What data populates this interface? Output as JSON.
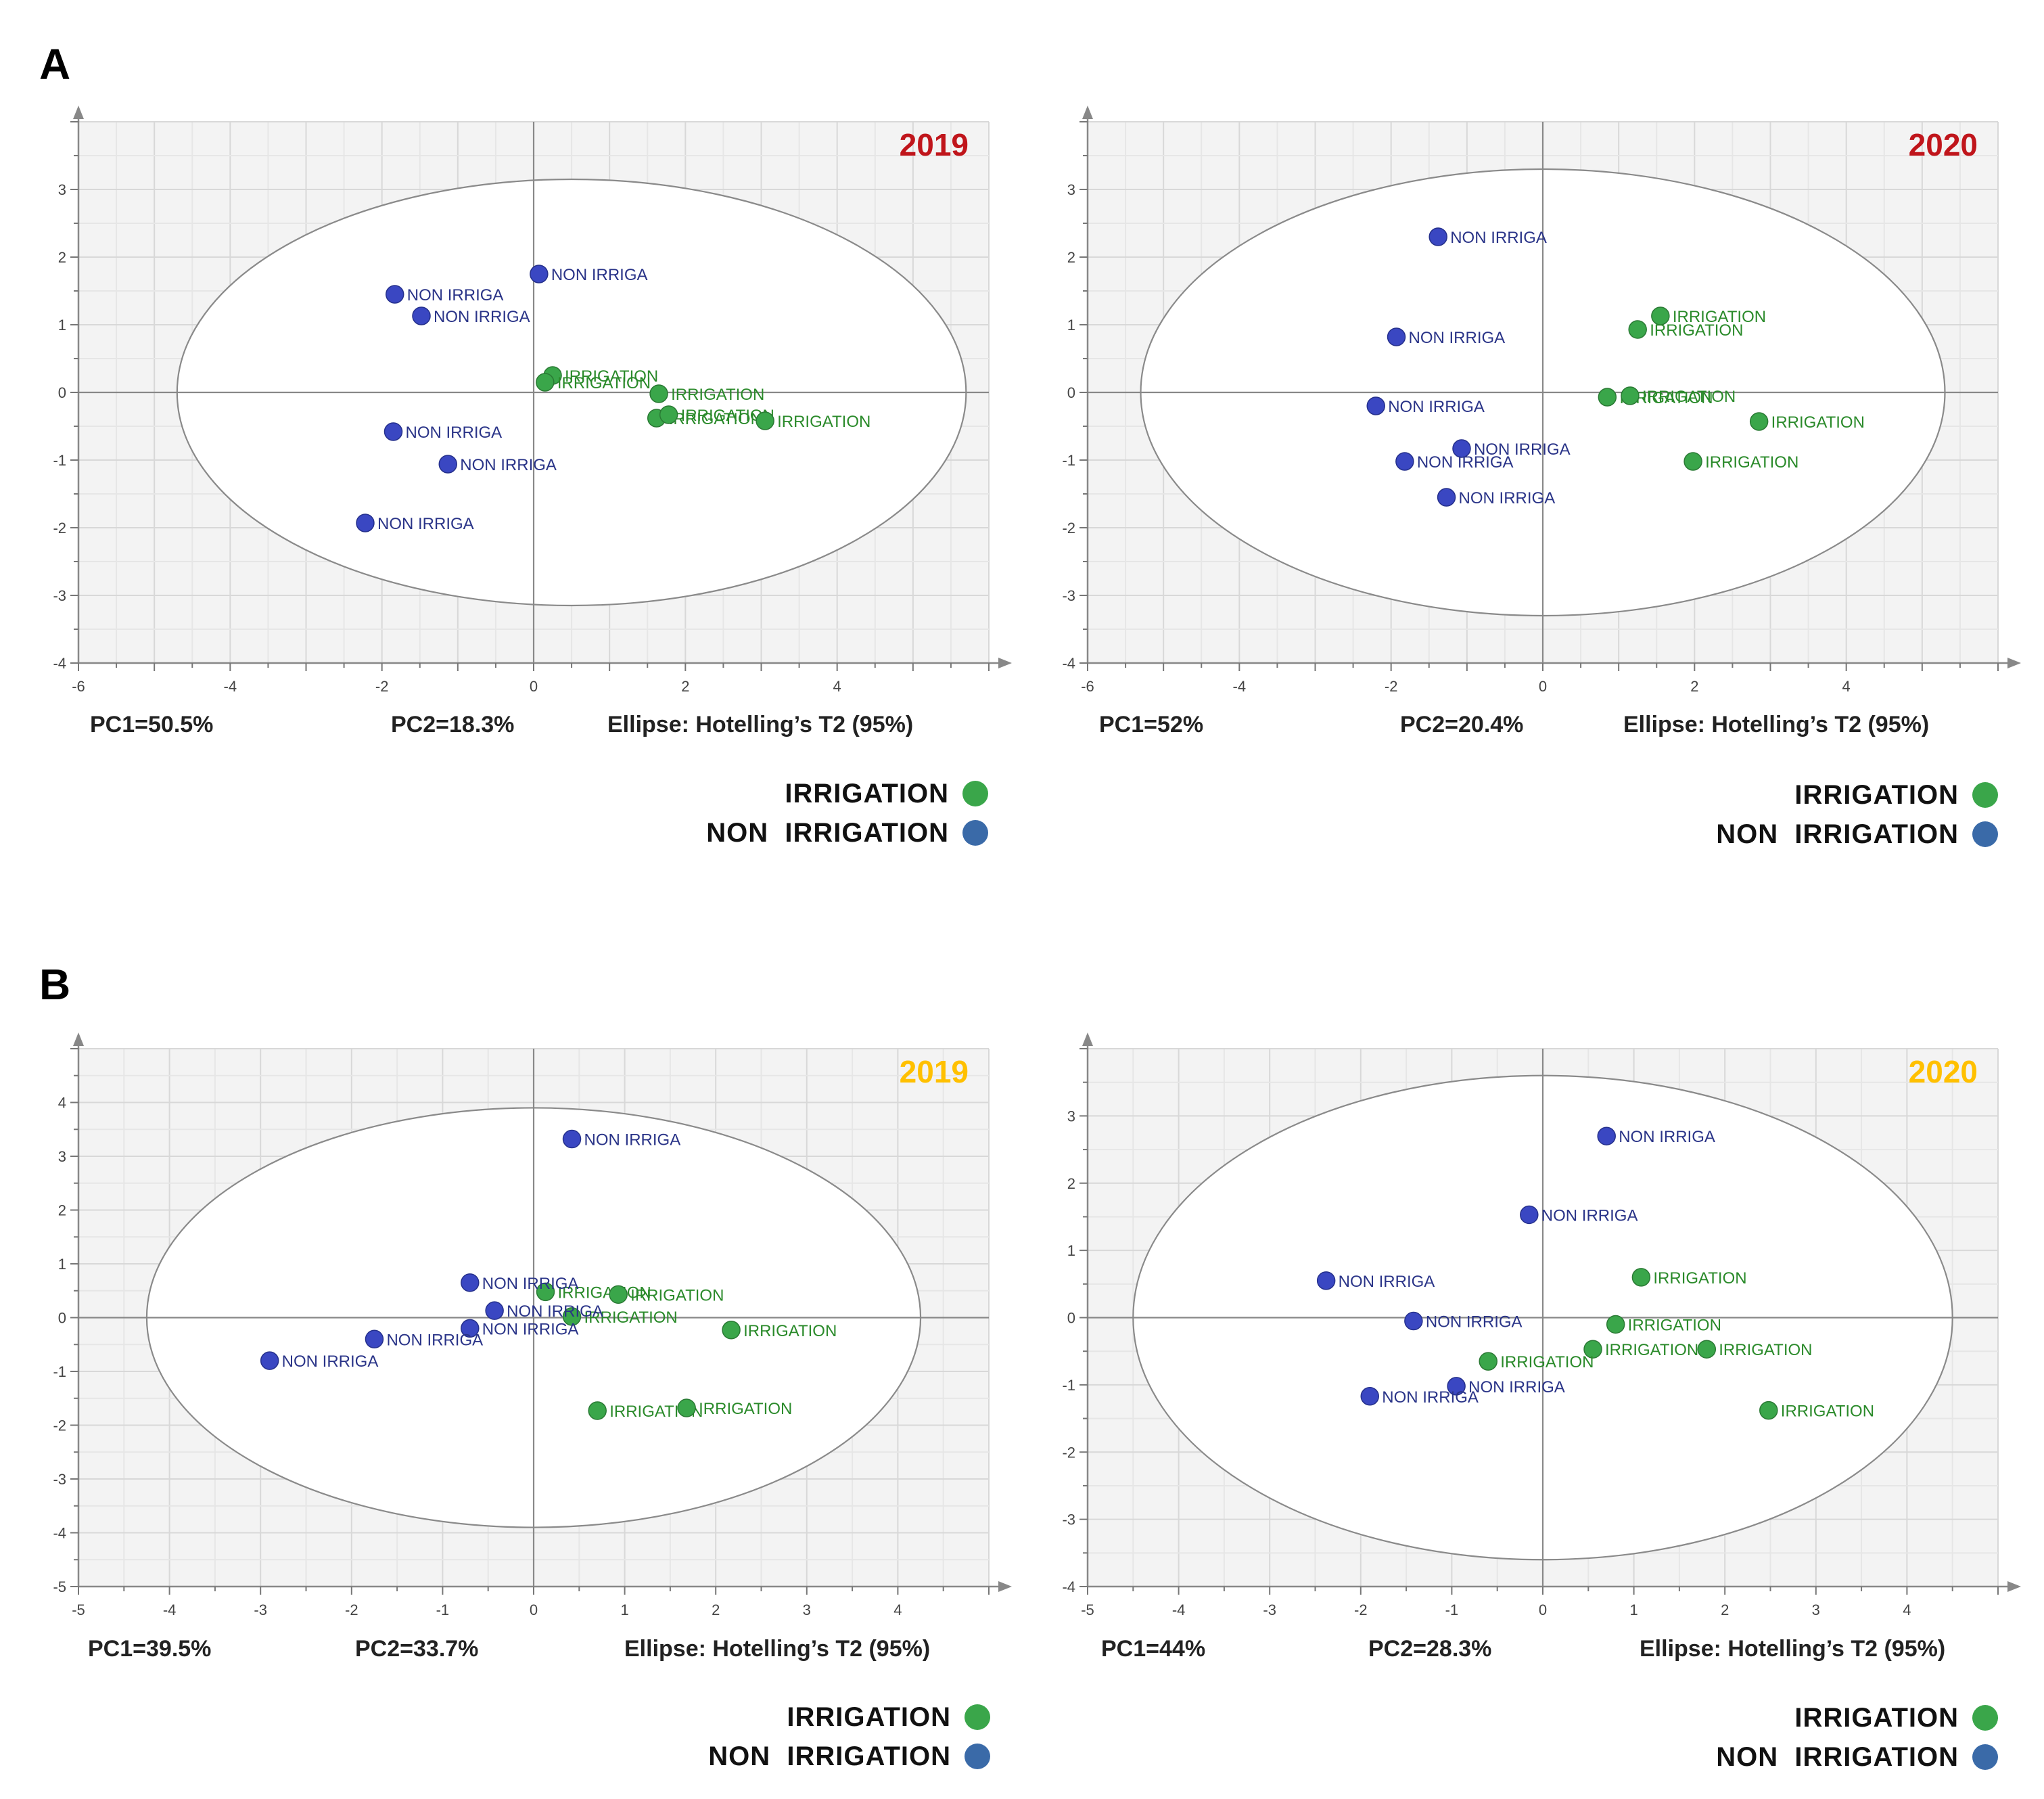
{
  "panel_labels": [
    "A",
    "B"
  ],
  "colors": {
    "irrigation": "#3aa64a",
    "non_irrigation": "#3a47c2",
    "legend_non": "#3a6aa8",
    "year_red": "#c0151b",
    "year_orange": "#ffc000",
    "label_green": "#2a8a2a",
    "label_blue": "#2a3488"
  },
  "legend": {
    "irrigation": "IRRIGATION",
    "non_irrigation": "NON  IRRIGATION"
  },
  "chart_data": [
    {
      "type": "scatter",
      "year": "2019",
      "pc1": "PC1=50.5%",
      "pc2": "PC2=18.3%",
      "ellipse": "Ellipse: Hotelling’s T2 (95%)",
      "xlim": [
        -6,
        6
      ],
      "ylim": [
        -4,
        4
      ],
      "xticks": [
        -6,
        -4,
        -2,
        0,
        2,
        4
      ],
      "yticks": [
        -4,
        -3,
        -2,
        -1,
        0,
        1,
        2,
        3
      ],
      "ellipse_center": [
        0.5,
        0
      ],
      "ellipse_radii": [
        5.2,
        3.15
      ],
      "series": [
        {
          "name": "IRRIGATION",
          "points": [
            {
              "x": 0.25,
              "y": 0.25,
              "label": "IRRIGATION"
            },
            {
              "x": 0.15,
              "y": 0.15,
              "label": "IRRIGATION"
            },
            {
              "x": 1.65,
              "y": -0.02,
              "label": "IRRIGATION"
            },
            {
              "x": 1.62,
              "y": -0.38,
              "label": "IRRIGATION"
            },
            {
              "x": 1.78,
              "y": -0.33,
              "label": "IRRIGATION"
            },
            {
              "x": 3.05,
              "y": -0.42,
              "label": "IRRIGATION"
            }
          ]
        },
        {
          "name": "NON  IRRIGATION",
          "points": [
            {
              "x": 0.07,
              "y": 1.75,
              "label": "NON IRRIGA"
            },
            {
              "x": -1.83,
              "y": 1.45,
              "label": "NON IRRIGA"
            },
            {
              "x": -1.48,
              "y": 1.13,
              "label": "NON IRRIGA"
            },
            {
              "x": -1.85,
              "y": -0.58,
              "label": "NON IRRIGA"
            },
            {
              "x": -1.13,
              "y": -1.06,
              "label": "NON IRRIGA"
            },
            {
              "x": -2.22,
              "y": -1.93,
              "label": "NON IRRIGA"
            }
          ]
        }
      ]
    },
    {
      "type": "scatter",
      "year": "2020",
      "pc1": "PC1=52%",
      "pc2": "PC2=20.4%",
      "ellipse": "Ellipse: Hotelling’s T2 (95%)",
      "xlim": [
        -6,
        6
      ],
      "ylim": [
        -4,
        4
      ],
      "xticks": [
        -6,
        -4,
        -2,
        0,
        2,
        4
      ],
      "yticks": [
        -4,
        -3,
        -2,
        -1,
        0,
        1,
        2,
        3
      ],
      "ellipse_center": [
        0,
        0
      ],
      "ellipse_radii": [
        5.3,
        3.3
      ],
      "series": [
        {
          "name": "IRRIGATION",
          "points": [
            {
              "x": 1.55,
              "y": 1.13,
              "label": "IRRIGATION"
            },
            {
              "x": 1.25,
              "y": 0.93,
              "label": "IRRIGATION"
            },
            {
              "x": 0.85,
              "y": -0.07,
              "label": "IRRIGATION"
            },
            {
              "x": 1.15,
              "y": -0.05,
              "label": "IRRIGATION"
            },
            {
              "x": 2.85,
              "y": -0.43,
              "label": "IRRIGATION"
            },
            {
              "x": 1.98,
              "y": -1.02,
              "label": "IRRIGATION"
            }
          ]
        },
        {
          "name": "NON  IRRIGATION",
          "points": [
            {
              "x": -1.38,
              "y": 2.3,
              "label": "NON IRRIGA"
            },
            {
              "x": -1.93,
              "y": 0.82,
              "label": "NON IRRIGA"
            },
            {
              "x": -2.2,
              "y": -0.2,
              "label": "NON IRRIGA"
            },
            {
              "x": -1.07,
              "y": -0.83,
              "label": "NON IRRIGA"
            },
            {
              "x": -1.82,
              "y": -1.02,
              "label": "NON IRRIGA"
            },
            {
              "x": -1.27,
              "y": -1.55,
              "label": "NON IRRIGA"
            }
          ]
        }
      ]
    },
    {
      "type": "scatter",
      "year": "2019",
      "pc1": "PC1=39.5%",
      "pc2": "PC2=33.7%",
      "ellipse": "Ellipse: Hotelling’s T2 (95%)",
      "xlim": [
        -5,
        5
      ],
      "ylim": [
        -5,
        5
      ],
      "xticks": [
        -5,
        -4,
        -3,
        -2,
        -1,
        0,
        1,
        2,
        3,
        4
      ],
      "yticks": [
        -5,
        -4,
        -3,
        -2,
        -1,
        0,
        1,
        2,
        3,
        4
      ],
      "ellipse_center": [
        0,
        0
      ],
      "ellipse_radii": [
        4.25,
        3.9
      ],
      "series": [
        {
          "name": "IRRIGATION",
          "points": [
            {
              "x": 0.13,
              "y": 0.48,
              "label": "IRRIGATION"
            },
            {
              "x": 0.93,
              "y": 0.43,
              "label": "IRRIGATION"
            },
            {
              "x": 0.42,
              "y": 0.02,
              "label": "IRRIGATION"
            },
            {
              "x": 2.17,
              "y": -0.23,
              "label": "IRRIGATION"
            },
            {
              "x": 0.7,
              "y": -1.73,
              "label": "IRRIGATION"
            },
            {
              "x": 1.68,
              "y": -1.68,
              "label": "IRRIGATION"
            }
          ]
        },
        {
          "name": "NON  IRRIGATION",
          "points": [
            {
              "x": 0.42,
              "y": 3.32,
              "label": "NON IRRIGA"
            },
            {
              "x": -0.7,
              "y": 0.65,
              "label": "NON IRRIGA"
            },
            {
              "x": -0.43,
              "y": 0.13,
              "label": "NON IRRIGA"
            },
            {
              "x": -0.7,
              "y": -0.2,
              "label": "NON IRRIGA"
            },
            {
              "x": -1.75,
              "y": -0.4,
              "label": "NON IRRIGA"
            },
            {
              "x": -2.9,
              "y": -0.8,
              "label": "NON IRRIGA"
            }
          ]
        }
      ]
    },
    {
      "type": "scatter",
      "year": "2020",
      "pc1": "PC1=44%",
      "pc2": "PC2=28.3%",
      "ellipse": "Ellipse: Hotelling’s T2 (95%)",
      "xlim": [
        -5,
        5
      ],
      "ylim": [
        -4,
        4
      ],
      "xticks": [
        -5,
        -4,
        -3,
        -2,
        -1,
        0,
        1,
        2,
        3,
        4
      ],
      "yticks": [
        -4,
        -3,
        -2,
        -1,
        0,
        1,
        2,
        3
      ],
      "ellipse_center": [
        0,
        0
      ],
      "ellipse_radii": [
        4.5,
        3.6
      ],
      "series": [
        {
          "name": "IRRIGATION",
          "points": [
            {
              "x": 1.08,
              "y": 0.6,
              "label": "IRRIGATION"
            },
            {
              "x": 0.8,
              "y": -0.1,
              "label": "IRRIGATION"
            },
            {
              "x": 0.55,
              "y": -0.47,
              "label": "IRRIGATION"
            },
            {
              "x": 1.8,
              "y": -0.47,
              "label": "IRRIGATION"
            },
            {
              "x": -0.6,
              "y": -0.65,
              "label": "IRRIGATION"
            },
            {
              "x": 2.48,
              "y": -1.38,
              "label": "IRRIGATION"
            }
          ]
        },
        {
          "name": "NON  IRRIGATION",
          "points": [
            {
              "x": 0.7,
              "y": 2.7,
              "label": "NON IRRIGA"
            },
            {
              "x": -0.15,
              "y": 1.53,
              "label": "NON IRRIGA"
            },
            {
              "x": -2.38,
              "y": 0.55,
              "label": "NON IRRIGA"
            },
            {
              "x": -1.42,
              "y": -0.05,
              "label": "NON IRRIGA"
            },
            {
              "x": -0.95,
              "y": -1.02,
              "label": "NON IRRIGA"
            },
            {
              "x": -1.9,
              "y": -1.17,
              "label": "NON IRRIGA"
            }
          ]
        }
      ]
    }
  ]
}
